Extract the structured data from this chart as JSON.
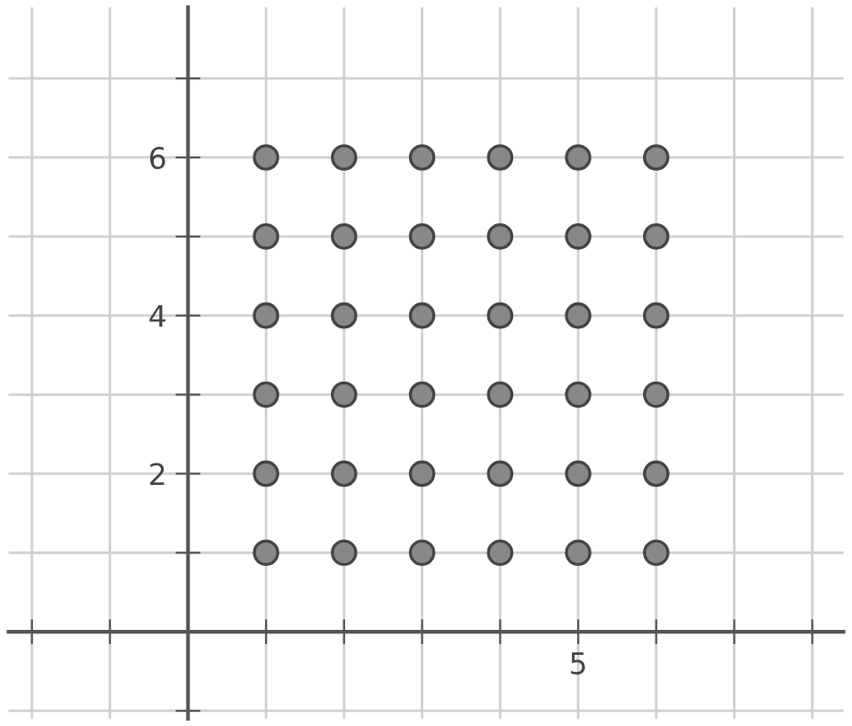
{
  "chart_data": {
    "type": "scatter",
    "categories": [
      null,
      null,
      null,
      null,
      null,
      null,
      null,
      "5",
      null,
      null,
      null
    ],
    "series": [
      {
        "color": "#888888",
        "values": [
          null,
          null,
          null,
          1,
          1,
          1,
          1,
          1,
          1,
          null,
          null
        ]
      },
      {
        "color": "#888888",
        "values": [
          null,
          null,
          null,
          2,
          2,
          2,
          2,
          2,
          2,
          null,
          null
        ]
      },
      {
        "color": "#888888",
        "values": [
          null,
          null,
          null,
          3,
          3,
          3,
          3,
          3,
          3,
          null,
          null
        ]
      },
      {
        "color": "#888888",
        "values": [
          null,
          null,
          null,
          4,
          4,
          4,
          4,
          4,
          4,
          null,
          null
        ]
      },
      {
        "color": "#888888",
        "values": [
          null,
          null,
          null,
          5,
          5,
          5,
          5,
          5,
          5,
          null,
          null
        ]
      },
      {
        "color": "#888888",
        "values": [
          null,
          null,
          null,
          6,
          6,
          6,
          6,
          6,
          6,
          null,
          null
        ]
      }
    ],
    "ylim": [
      -1.1,
      7.9
    ],
    "yticks": [
      {
        "value": -1,
        "label": null
      },
      {
        "value": 0,
        "label": null
      },
      {
        "value": 1,
        "label": null
      },
      2,
      {
        "value": 3,
        "label": null
      },
      4,
      {
        "value": 5,
        "label": null
      },
      6,
      {
        "value": 7,
        "label": null
      }
    ],
    "grid": true,
    "marker": "circle"
  }
}
